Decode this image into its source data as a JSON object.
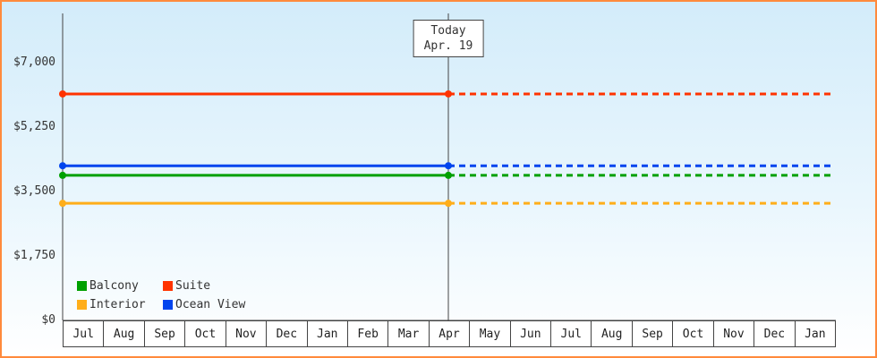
{
  "chart_data": {
    "type": "line",
    "title": "",
    "subtitle": "",
    "grid": false,
    "legend_position": "bottom-left",
    "today_marker": {
      "line1": "Today",
      "line2": "Apr. 19",
      "x_category": "Apr"
    },
    "x_categories": [
      "Jul",
      "Aug",
      "Sep",
      "Oct",
      "Nov",
      "Dec",
      "Jan",
      "Feb",
      "Mar",
      "Apr",
      "May",
      "Jun",
      "Jul",
      "Aug",
      "Sep",
      "Oct",
      "Nov",
      "Dec",
      "Jan"
    ],
    "ylim": [
      0,
      7000
    ],
    "y_ticks": [
      {
        "label": "$7,000",
        "value": 7000
      },
      {
        "label": "$5,250",
        "value": 5250
      },
      {
        "label": "$3,500",
        "value": 3500
      },
      {
        "label": "$1,750",
        "value": 1750
      },
      {
        "label": "$0",
        "value": 0
      }
    ],
    "series_note": "flat price lines; solid before today, dashed projection after today",
    "series": [
      {
        "name": "Suite",
        "color": "#ff3300",
        "value": 6150
      },
      {
        "name": "Ocean View",
        "color": "#0044ee",
        "value": 4200
      },
      {
        "name": "Balcony",
        "color": "#00a000",
        "value": 3940
      },
      {
        "name": "Interior",
        "color": "#ffae1a",
        "value": 3180
      }
    ],
    "legend": {
      "items": [
        {
          "label": "Balcony",
          "color": "#00a000"
        },
        {
          "label": "Suite",
          "color": "#ff3300"
        },
        {
          "label": "Interior",
          "color": "#ffae1a"
        },
        {
          "label": "Ocean View",
          "color": "#0044ee"
        }
      ]
    }
  },
  "colors": {
    "frame_border": "#ff8a3c",
    "plot_bg_top": "#d3ecfa",
    "plot_bg_bottom": "#ffffff",
    "axis": "#444444",
    "text": "#333333"
  }
}
